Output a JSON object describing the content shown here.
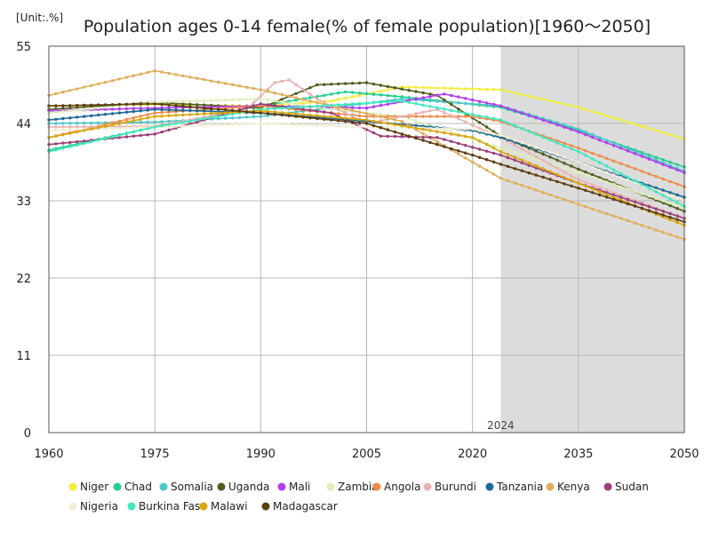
{
  "chart_data": {
    "type": "line",
    "title": "Population ages 0-14 female(% of female population)[1960～2050]",
    "unit_label": "[Unit:.%]",
    "xlim": [
      1960,
      2050
    ],
    "ylim": [
      0,
      55
    ],
    "x_ticks": [
      "1960",
      "1975",
      "1990",
      "2005",
      "2020",
      "2035",
      "2050"
    ],
    "y_ticks": [
      "0",
      "11",
      "22",
      "33",
      "44",
      "55"
    ],
    "grid": true,
    "legend_position": "bottom",
    "shaded_region": {
      "from": 2024,
      "to": 2050,
      "label": "2024"
    },
    "series": [
      {
        "name": "Niger",
        "color": "#f2ee3c",
        "points": [
          [
            1960,
            46.5
          ],
          [
            1975,
            46.7
          ],
          [
            1990,
            46.5
          ],
          [
            2000,
            47.2
          ],
          [
            2010,
            49.2
          ],
          [
            2024,
            48.8
          ],
          [
            2035,
            46.3
          ],
          [
            2050,
            41.8
          ]
        ]
      },
      {
        "name": "Chad",
        "color": "#20cf8f",
        "points": [
          [
            1960,
            40.2
          ],
          [
            1975,
            43.5
          ],
          [
            1990,
            46.5
          ],
          [
            2002,
            48.5
          ],
          [
            2010,
            47.8
          ],
          [
            2024,
            46.3
          ],
          [
            2035,
            43.0
          ],
          [
            2050,
            37.8
          ]
        ]
      },
      {
        "name": "Somalia",
        "color": "#4fc7c9",
        "points": [
          [
            1960,
            44.0
          ],
          [
            1975,
            44.2
          ],
          [
            1990,
            45.0
          ],
          [
            2010,
            47.5
          ],
          [
            2024,
            46.5
          ],
          [
            2035,
            43.2
          ],
          [
            2050,
            37.2
          ]
        ]
      },
      {
        "name": "Uganda",
        "color": "#4f5d1e",
        "points": [
          [
            1960,
            46.0
          ],
          [
            1975,
            47.0
          ],
          [
            1990,
            46.2
          ],
          [
            1998,
            49.5
          ],
          [
            2005,
            49.8
          ],
          [
            2015,
            48.0
          ],
          [
            2024,
            42.2
          ],
          [
            2035,
            37.5
          ],
          [
            2050,
            31.5
          ]
        ]
      },
      {
        "name": "Mali",
        "color": "#b33df0",
        "points": [
          [
            1960,
            45.8
          ],
          [
            1975,
            46.2
          ],
          [
            1990,
            46.5
          ],
          [
            2005,
            46.2
          ],
          [
            2016,
            48.2
          ],
          [
            2024,
            46.5
          ],
          [
            2035,
            42.8
          ],
          [
            2050,
            37.0
          ]
        ]
      },
      {
        "name": "Zambia",
        "color": "#dfeebb",
        "points": [
          [
            1960,
            45.5
          ],
          [
            1975,
            47.0
          ],
          [
            1990,
            47.5
          ],
          [
            2000,
            46.0
          ],
          [
            2010,
            45.0
          ],
          [
            2024,
            40.5
          ],
          [
            2035,
            37.0
          ],
          [
            2050,
            32.0
          ]
        ]
      },
      {
        "name": "Angola",
        "color": "#ef8c4d",
        "points": [
          [
            1960,
            42.0
          ],
          [
            1975,
            45.5
          ],
          [
            1990,
            46.5
          ],
          [
            2005,
            45.0
          ],
          [
            2020,
            45.0
          ],
          [
            2024,
            44.3
          ],
          [
            2035,
            40.5
          ],
          [
            2050,
            35.0
          ]
        ]
      },
      {
        "name": "Burundi",
        "color": "#e8b3b1",
        "points": [
          [
            1960,
            43.5
          ],
          [
            1975,
            43.6
          ],
          [
            1988,
            46.0
          ],
          [
            1992,
            49.8
          ],
          [
            1994,
            50.2
          ],
          [
            1998,
            47.5
          ],
          [
            2005,
            44.0
          ],
          [
            2015,
            46.0
          ],
          [
            2024,
            42.0
          ],
          [
            2035,
            36.0
          ],
          [
            2050,
            30.5
          ]
        ]
      },
      {
        "name": "Tanzania",
        "color": "#1a6a96",
        "points": [
          [
            1960,
            44.5
          ],
          [
            1975,
            46.0
          ],
          [
            1990,
            45.5
          ],
          [
            2005,
            44.3
          ],
          [
            2020,
            43.0
          ],
          [
            2024,
            42.0
          ],
          [
            2035,
            38.5
          ],
          [
            2050,
            33.5
          ]
        ]
      },
      {
        "name": "Kenya",
        "color": "#e0ad5c",
        "points": [
          [
            1960,
            48.0
          ],
          [
            1975,
            51.5
          ],
          [
            1990,
            48.8
          ],
          [
            2000,
            46.5
          ],
          [
            2010,
            44.3
          ],
          [
            2020,
            38.5
          ],
          [
            2024,
            36.2
          ],
          [
            2035,
            32.5
          ],
          [
            2050,
            27.5
          ]
        ]
      },
      {
        "name": "Sudan",
        "color": "#9b3f7a",
        "points": [
          [
            1960,
            41.0
          ],
          [
            1975,
            42.5
          ],
          [
            1990,
            46.8
          ],
          [
            2000,
            45.5
          ],
          [
            2007,
            42.2
          ],
          [
            2015,
            42.0
          ],
          [
            2024,
            39.5
          ],
          [
            2035,
            35.5
          ],
          [
            2050,
            30.5
          ]
        ]
      },
      {
        "name": "Nigeria",
        "color": "#f3edd4",
        "points": [
          [
            1960,
            43.0
          ],
          [
            1975,
            43.5
          ],
          [
            1990,
            44.0
          ],
          [
            2005,
            43.5
          ],
          [
            2020,
            43.2
          ],
          [
            2024,
            42.3
          ],
          [
            2035,
            38.5
          ],
          [
            2050,
            33.0
          ]
        ]
      },
      {
        "name": "Burkina Faso",
        "color": "#3fe8bf",
        "points": [
          [
            1960,
            40.0
          ],
          [
            1975,
            43.5
          ],
          [
            1990,
            46.0
          ],
          [
            2010,
            47.2
          ],
          [
            2024,
            44.5
          ],
          [
            2035,
            40.0
          ],
          [
            2050,
            32.2
          ]
        ]
      },
      {
        "name": "Malawi",
        "color": "#d8a70f",
        "points": [
          [
            1960,
            42.0
          ],
          [
            1975,
            45.0
          ],
          [
            1990,
            45.8
          ],
          [
            2005,
            44.5
          ],
          [
            2020,
            42.0
          ],
          [
            2024,
            40.0
          ],
          [
            2035,
            35.5
          ],
          [
            2050,
            29.5
          ]
        ]
      },
      {
        "name": "Madagascar",
        "color": "#5d3d12",
        "points": [
          [
            1960,
            46.5
          ],
          [
            1975,
            46.8
          ],
          [
            1990,
            45.5
          ],
          [
            2005,
            44.0
          ],
          [
            2020,
            39.5
          ],
          [
            2024,
            38.2
          ],
          [
            2035,
            34.8
          ],
          [
            2050,
            30.0
          ]
        ]
      }
    ]
  }
}
